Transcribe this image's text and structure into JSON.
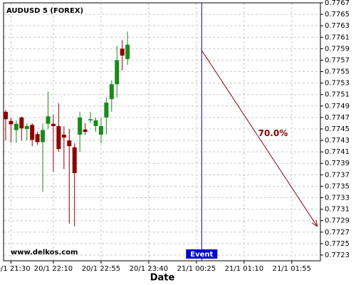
{
  "chart_data": {
    "type": "candlestick",
    "title": "AUDUSD 5 (FOREX)",
    "x_label": "Date",
    "watermark": "www.delkos.com",
    "up_color": "#1a8a1a",
    "down_color": "#8b0000",
    "grid": true,
    "x": [
      "20/1 21:25",
      "20/1 21:30",
      "20/1 21:35",
      "20/1 21:40",
      "20/1 21:45",
      "20/1 21:50",
      "20/1 21:55",
      "20/1 22:00",
      "20/1 22:05",
      "20/1 22:10",
      "20/1 22:15",
      "20/1 22:20",
      "20/1 22:25",
      "20/1 22:30",
      "20/1 22:35",
      "20/1 22:40",
      "20/1 22:45",
      "20/1 22:50",
      "20/1 22:55",
      "20/1 23:00",
      "20/1 23:05",
      "20/1 23:10",
      "20/1 23:15",
      "20/1 23:20"
    ],
    "open": [
      0.7748,
      0.77464,
      0.77448,
      0.7747,
      0.7745,
      0.77457,
      0.77441,
      0.77427,
      0.77459,
      0.77459,
      0.77455,
      0.7744,
      0.7743,
      0.77418,
      0.7744,
      0.77449,
      0.77465,
      0.77455,
      0.7744,
      0.7747,
      0.77502,
      0.77528,
      0.7759,
      0.77572
    ],
    "high": [
      0.77483,
      0.7747,
      0.77465,
      0.77472,
      0.7746,
      0.7746,
      0.77445,
      0.7746,
      0.77515,
      0.77475,
      0.77495,
      0.77455,
      0.7745,
      0.77425,
      0.7748,
      0.7746,
      0.7748,
      0.7747,
      0.7747,
      0.77505,
      0.77535,
      0.77595,
      0.77605,
      0.7762
    ],
    "low": [
      0.7743,
      0.77426,
      0.77426,
      0.7743,
      0.7743,
      0.7742,
      0.77422,
      0.7734,
      0.7745,
      0.77375,
      0.7741,
      0.7738,
      0.77285,
      0.7728,
      0.7741,
      0.7744,
      0.7746,
      0.77445,
      0.77425,
      0.7744,
      0.7748,
      0.77505,
      0.77552,
      0.77562
    ],
    "close": [
      0.77467,
      0.77458,
      0.77459,
      0.77451,
      0.77455,
      0.77431,
      0.77427,
      0.77448,
      0.77472,
      0.77455,
      0.77415,
      0.77435,
      0.7742,
      0.77373,
      0.7747,
      0.77445,
      0.77467,
      0.77465,
      0.77455,
      0.77496,
      0.77528,
      0.7757,
      0.77578,
      0.77597
    ],
    "xlim": [
      "20/1 21:23",
      "21/1 02:22"
    ],
    "xticks": [
      "20/1 21:30",
      "20/1 22:10",
      "20/1 22:55",
      "20/1 23:40",
      "21/1 00:25",
      "21/1 01:10",
      "21/1 01:55"
    ],
    "ylim": [
      0.7722,
      0.7767
    ],
    "yticks": [
      0.7723,
      0.7725,
      0.7727,
      0.7729,
      0.7731,
      0.7733,
      0.7735,
      0.7737,
      0.7739,
      0.7741,
      0.7743,
      0.7745,
      0.7747,
      0.7749,
      0.7751,
      0.7753,
      0.7755,
      0.7757,
      0.7759,
      0.7761,
      0.7763,
      0.7765,
      0.7767
    ],
    "event": {
      "label": "Event",
      "x": "21/1 00:30",
      "color": "#0000cc"
    },
    "projection": {
      "label": "70.0%",
      "color": "#8b0000",
      "x": [
        "21/1 00:30",
        "21/1 02:19"
      ],
      "values": [
        0.77587,
        0.7728
      ]
    }
  }
}
